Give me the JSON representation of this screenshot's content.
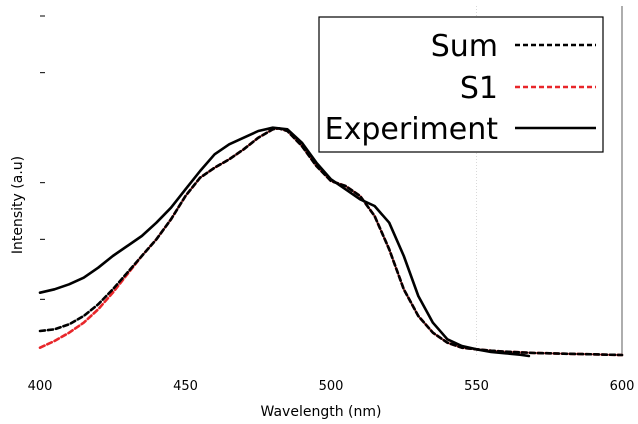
{
  "chart_data": {
    "type": "line",
    "title": "",
    "xlabel": "Wavelength (nm)",
    "ylabel": "Intensity (a.u)",
    "xlim": [
      400,
      600
    ],
    "ylim": [
      0,
      1.05
    ],
    "xticks": [
      400,
      450,
      500,
      550,
      600
    ],
    "xtick_labels": [
      "400",
      "450",
      "500",
      "550",
      "600"
    ],
    "yticks": [
      0.17,
      0.35,
      0.52,
      0.85,
      1.02
    ],
    "grid": false,
    "legend_position": "top-right",
    "series": [
      {
        "name": "Sum",
        "color": "#000000",
        "style": "dashed",
        "x": [
          400,
          405,
          410,
          415,
          420,
          425,
          430,
          435,
          440,
          445,
          450,
          455,
          460,
          465,
          470,
          475,
          480,
          482,
          485,
          490,
          495,
          500,
          505,
          510,
          515,
          520,
          525,
          530,
          535,
          540,
          545,
          550,
          555,
          560,
          565,
          570,
          575,
          580,
          585,
          590,
          595,
          600
        ],
        "y": [
          0.075,
          0.08,
          0.095,
          0.12,
          0.155,
          0.2,
          0.25,
          0.3,
          0.35,
          0.41,
          0.48,
          0.535,
          0.565,
          0.59,
          0.62,
          0.655,
          0.68,
          0.683,
          0.675,
          0.63,
          0.57,
          0.525,
          0.51,
          0.48,
          0.42,
          0.32,
          0.2,
          0.12,
          0.07,
          0.04,
          0.025,
          0.02,
          0.016,
          0.013,
          0.011,
          0.009,
          0.008,
          0.007,
          0.006,
          0.005,
          0.004,
          0.003
        ]
      },
      {
        "name": "S1",
        "color": "#e8262a",
        "style": "dashed",
        "x": [
          400,
          405,
          410,
          415,
          420,
          425,
          430,
          435,
          440,
          445,
          450,
          455,
          460,
          465,
          470,
          475,
          480,
          482,
          485,
          490,
          495,
          500,
          505,
          510,
          515,
          520,
          525,
          530,
          535,
          540,
          545,
          550,
          555,
          560,
          565,
          570,
          575,
          580,
          585,
          590,
          595,
          600
        ],
        "y": [
          0.025,
          0.045,
          0.07,
          0.1,
          0.14,
          0.19,
          0.245,
          0.3,
          0.35,
          0.41,
          0.48,
          0.535,
          0.565,
          0.59,
          0.62,
          0.655,
          0.68,
          0.683,
          0.675,
          0.63,
          0.57,
          0.525,
          0.51,
          0.48,
          0.42,
          0.32,
          0.2,
          0.12,
          0.07,
          0.04,
          0.025,
          0.02,
          0.016,
          0.013,
          0.011,
          0.009,
          0.008,
          0.007,
          0.006,
          0.005,
          0.004,
          0.003
        ]
      },
      {
        "name": "Experiment",
        "color": "#000000",
        "style": "solid",
        "x": [
          400,
          405,
          410,
          415,
          420,
          425,
          430,
          435,
          440,
          445,
          450,
          455,
          460,
          465,
          470,
          475,
          480,
          485,
          490,
          495,
          500,
          505,
          510,
          515,
          520,
          525,
          530,
          535,
          540,
          545,
          550,
          555,
          560,
          565,
          568
        ],
        "y": [
          0.19,
          0.2,
          0.215,
          0.235,
          0.265,
          0.3,
          0.33,
          0.36,
          0.4,
          0.445,
          0.5,
          0.555,
          0.605,
          0.635,
          0.655,
          0.675,
          0.685,
          0.68,
          0.64,
          0.58,
          0.53,
          0.5,
          0.47,
          0.45,
          0.4,
          0.3,
          0.18,
          0.1,
          0.05,
          0.03,
          0.02,
          0.012,
          0.008,
          0.004,
          0.0
        ]
      }
    ]
  }
}
